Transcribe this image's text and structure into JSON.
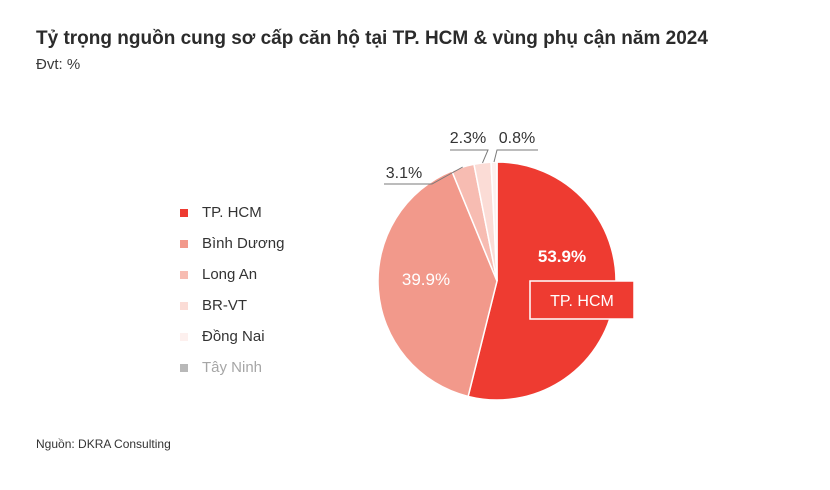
{
  "title": "Tỷ trọng nguồn cung sơ cấp căn hộ tại TP. HCM & vùng phụ cận năm 2024",
  "subtitle": "Đvt: %",
  "source": "Nguồn: DKRA Consulting",
  "highlight_label": "TP. HCM",
  "chart_data": {
    "type": "pie",
    "title": "Tỷ trọng nguồn cung sơ cấp căn hộ tại TP. HCM & vùng phụ cận năm 2024",
    "unit": "%",
    "legend_position": "left",
    "slices": [
      {
        "name": "TP. HCM",
        "value": 53.9,
        "label": "53.9%",
        "color": "#ee3b31"
      },
      {
        "name": "Bình Dương",
        "value": 39.9,
        "label": "39.9%",
        "color": "#f2998b"
      },
      {
        "name": "Long An",
        "value": 3.1,
        "label": "3.1%",
        "color": "#f7bcb2"
      },
      {
        "name": "BR-VT",
        "value": 2.3,
        "label": "2.3%",
        "color": "#fbdcd6"
      },
      {
        "name": "Đồng Nai",
        "value": 0.8,
        "label": "0.8%",
        "color": "#fdf0ee"
      },
      {
        "name": "Tây Ninh",
        "value": 0,
        "label": "",
        "color": "#b8b8b8"
      }
    ]
  }
}
